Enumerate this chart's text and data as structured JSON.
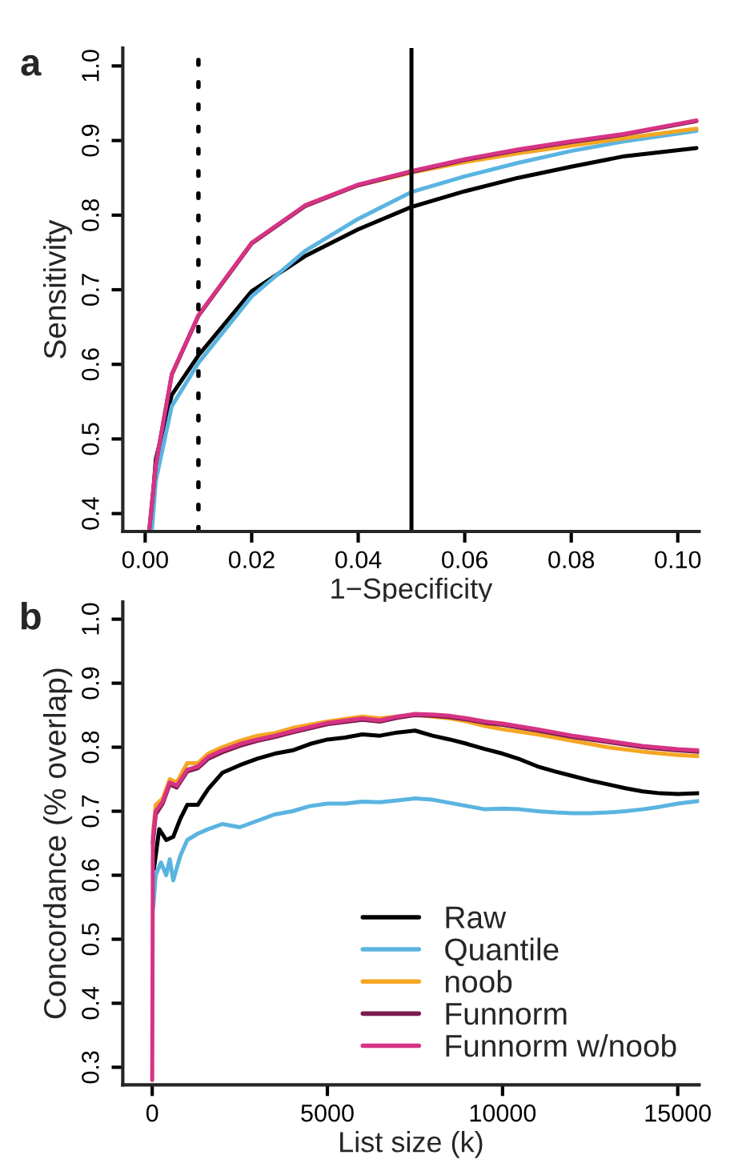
{
  "chart_data": [
    {
      "type": "line",
      "title": "a",
      "xlabel": "1−Specificity",
      "ylabel": "Sensitivity",
      "xlim": [
        -0.0042,
        0.104
      ],
      "ylim": [
        0.376,
        1.024
      ],
      "xticks": [
        {
          "value": 0,
          "label": "0.00"
        },
        0.02,
        0.04,
        0.06,
        0.08,
        {
          "value": 0.1,
          "label": "0.10"
        }
      ],
      "yticks": [
        0.4,
        0.5,
        0.6,
        0.7,
        0.8,
        0.9,
        {
          "value": 1.0,
          "label": "1.0"
        }
      ],
      "grid": false,
      "legend": false,
      "ref_lines": [
        {
          "axis": "x",
          "value": 0.01,
          "color": "#000000",
          "line_style": "dotted"
        },
        {
          "axis": "x",
          "value": 0.05,
          "color": "#000000",
          "line_style": "solid"
        }
      ],
      "series": [
        {
          "color": "#000000",
          "x": [
            0.001,
            0.002,
            0.005,
            0.01,
            0.02,
            0.03,
            0.04,
            0.05,
            0.06,
            0.07,
            0.08,
            0.09,
            0.1035
          ],
          "values": [
            0.38,
            0.473,
            0.559,
            0.612,
            0.698,
            0.745,
            0.781,
            0.811,
            0.832,
            0.85,
            0.865,
            0.879,
            0.89
          ]
        },
        {
          "color": "#5ab4e0",
          "x": [
            0.0013,
            0.002,
            0.005,
            0.01,
            0.02,
            0.03,
            0.04,
            0.05,
            0.06,
            0.07,
            0.08,
            0.09,
            0.1035
          ],
          "values": [
            0.38,
            0.444,
            0.544,
            0.602,
            0.691,
            0.752,
            0.795,
            0.831,
            0.852,
            0.87,
            0.886,
            0.899,
            0.913
          ]
        },
        {
          "color": "#f5a623",
          "x": [
            0.03,
            0.04,
            0.05,
            0.06,
            0.07,
            0.08,
            0.09,
            0.1035
          ],
          "values": [
            0.813,
            0.84,
            0.857,
            0.871,
            0.883,
            0.893,
            0.903,
            0.916
          ]
        },
        {
          "color": "#7b1c4f",
          "x": [
            0.0008,
            0.002,
            0.005,
            0.01,
            0.02,
            0.03,
            0.04,
            0.05,
            0.06,
            0.07,
            0.08,
            0.09,
            0.1035
          ],
          "values": [
            0.38,
            0.465,
            0.586,
            0.665,
            0.762,
            0.812,
            0.84,
            0.858,
            0.874,
            0.887,
            0.898,
            0.908,
            0.926
          ]
        },
        {
          "color": "#d63384",
          "x": [
            0.0008,
            0.002,
            0.005,
            0.01,
            0.02,
            0.03,
            0.04,
            0.05,
            0.06,
            0.07,
            0.08,
            0.09,
            0.1035
          ],
          "values": [
            0.38,
            0.466,
            0.587,
            0.666,
            0.763,
            0.813,
            0.841,
            0.859,
            0.875,
            0.888,
            0.899,
            0.909,
            0.927
          ]
        }
      ]
    },
    {
      "type": "line",
      "title": "b",
      "xlabel": "List size (k)",
      "ylabel": "Concordance (% overlap)",
      "xlim": [
        -840,
        15610
      ],
      "ylim": [
        0.2725,
        1.027
      ],
      "xticks": [
        0,
        5000,
        10000,
        15000
      ],
      "yticks": [
        0.3,
        0.4,
        0.5,
        0.6,
        0.7,
        0.8,
        0.9,
        {
          "value": 1.0,
          "label": "1.0"
        }
      ],
      "grid": false,
      "legend": "bottom right",
      "series": [
        {
          "name": "Raw",
          "color": "#000000",
          "x": [
            50,
            200,
            400,
            600,
            800,
            1000,
            1300,
            1600,
            2000,
            2500,
            3000,
            3500,
            4000,
            4500,
            5000,
            5500,
            6000,
            6500,
            7000,
            7500,
            8000,
            8500,
            9000,
            9500,
            10000,
            10500,
            11000,
            11500,
            12000,
            12500,
            13000,
            13500,
            14000,
            14500,
            15000,
            15600
          ],
          "values": [
            0.61,
            0.672,
            0.655,
            0.66,
            0.688,
            0.71,
            0.71,
            0.735,
            0.76,
            0.772,
            0.782,
            0.79,
            0.795,
            0.805,
            0.812,
            0.815,
            0.82,
            0.818,
            0.823,
            0.826,
            0.818,
            0.812,
            0.805,
            0.797,
            0.79,
            0.781,
            0.77,
            0.762,
            0.755,
            0.748,
            0.742,
            0.736,
            0.731,
            0.728,
            0.727,
            0.728
          ]
        },
        {
          "name": "Quantile",
          "color": "#5ab4e0",
          "x": [
            30,
            100,
            250,
            400,
            500,
            600,
            800,
            1000,
            1300,
            1600,
            2000,
            2500,
            3000,
            3500,
            4000,
            4500,
            5000,
            5500,
            6000,
            6500,
            7000,
            7500,
            8000,
            8500,
            9000,
            9500,
            10000,
            10500,
            11000,
            11500,
            12000,
            12500,
            13000,
            13500,
            14000,
            14500,
            15000,
            15600
          ],
          "values": [
            0.55,
            0.6,
            0.62,
            0.6,
            0.625,
            0.592,
            0.63,
            0.655,
            0.665,
            0.672,
            0.68,
            0.675,
            0.685,
            0.695,
            0.7,
            0.708,
            0.712,
            0.712,
            0.715,
            0.714,
            0.717,
            0.72,
            0.718,
            0.713,
            0.708,
            0.703,
            0.704,
            0.703,
            0.7,
            0.698,
            0.697,
            0.697,
            0.698,
            0.7,
            0.703,
            0.707,
            0.712,
            0.716
          ]
        },
        {
          "name": "noob",
          "color": "#f5a623",
          "x": [
            30,
            100,
            300,
            500,
            700,
            1000,
            1300,
            1600,
            2000,
            2500,
            3000,
            3500,
            4000,
            5000,
            6000,
            6500,
            7000,
            7500,
            8000,
            8500,
            9000,
            9500,
            10000,
            11000,
            12000,
            13000,
            14000,
            15000,
            15600
          ],
          "values": [
            0.67,
            0.71,
            0.72,
            0.75,
            0.745,
            0.775,
            0.775,
            0.79,
            0.8,
            0.81,
            0.818,
            0.822,
            0.83,
            0.84,
            0.848,
            0.845,
            0.848,
            0.851,
            0.848,
            0.845,
            0.84,
            0.833,
            0.828,
            0.82,
            0.81,
            0.8,
            0.793,
            0.788,
            0.786
          ]
        },
        {
          "name": "Funnorm",
          "color": "#7b1c4f",
          "x": [
            20,
            100,
            300,
            500,
            700,
            1000,
            1300,
            1600,
            2000,
            2500,
            3000,
            3500,
            4000,
            5000,
            6000,
            6500,
            7000,
            7500,
            8000,
            8500,
            9000,
            9500,
            10000,
            11000,
            12000,
            13000,
            14000,
            15000,
            15600
          ],
          "values": [
            0.65,
            0.695,
            0.712,
            0.742,
            0.737,
            0.762,
            0.767,
            0.782,
            0.792,
            0.802,
            0.81,
            0.816,
            0.823,
            0.836,
            0.843,
            0.84,
            0.846,
            0.85,
            0.849,
            0.847,
            0.843,
            0.838,
            0.835,
            0.826,
            0.816,
            0.808,
            0.8,
            0.795,
            0.793
          ]
        },
        {
          "name": "Funnorm w/noob",
          "color": "#d63384",
          "x": [
            0,
            20,
            100,
            300,
            500,
            700,
            1000,
            1300,
            1600,
            2000,
            2500,
            3000,
            3500,
            4000,
            5000,
            6000,
            6500,
            7000,
            7500,
            8000,
            8500,
            9000,
            9500,
            10000,
            11000,
            12000,
            13000,
            14000,
            15000,
            15600
          ],
          "values": [
            0.28,
            0.66,
            0.7,
            0.715,
            0.745,
            0.74,
            0.765,
            0.77,
            0.785,
            0.795,
            0.805,
            0.812,
            0.818,
            0.825,
            0.838,
            0.845,
            0.842,
            0.848,
            0.852,
            0.851,
            0.849,
            0.845,
            0.84,
            0.837,
            0.828,
            0.818,
            0.81,
            0.802,
            0.797,
            0.795
          ]
        }
      ]
    }
  ]
}
